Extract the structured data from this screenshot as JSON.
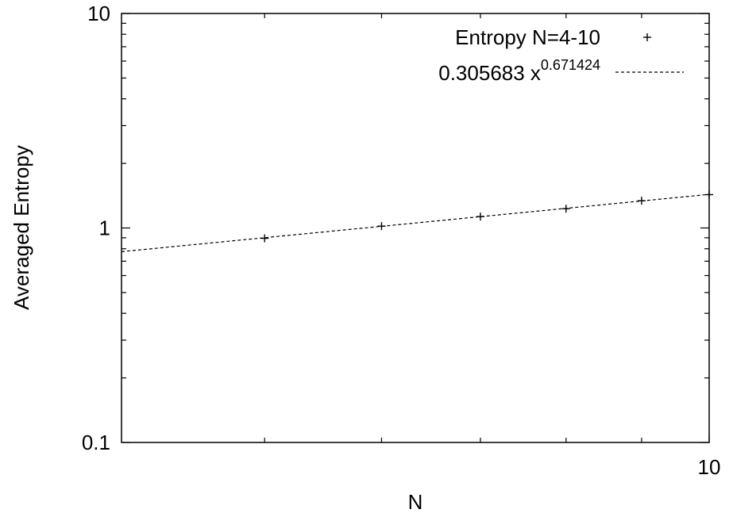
{
  "chart_data": {
    "type": "scatter",
    "title": "",
    "xlabel": "N",
    "ylabel": "Averaged Entropy",
    "xscale": "log",
    "yscale": "log",
    "xlim": [
      4,
      10
    ],
    "ylim": [
      0.1,
      10
    ],
    "x_tick_labels": [
      {
        "value": 10,
        "label": "10"
      }
    ],
    "x_minor_ticks": [
      5,
      6,
      7,
      8,
      9
    ],
    "y_tick_labels": [
      {
        "value": 0.1,
        "label": "0.1"
      },
      {
        "value": 1,
        "label": "1"
      },
      {
        "value": 10,
        "label": "10"
      }
    ],
    "y_minor_ticks": [
      0.2,
      0.3,
      0.4,
      0.5,
      0.6,
      0.7,
      0.8,
      0.9,
      2,
      3,
      4,
      5,
      6,
      7,
      8,
      9
    ],
    "grid": false,
    "legend_position": "top-right",
    "series": [
      {
        "name": "Entropy N=4-10",
        "style": "points",
        "marker": "plus",
        "x": [
          5,
          6,
          7,
          8,
          9,
          10
        ],
        "y": [
          0.895,
          1.02,
          1.13,
          1.23,
          1.34,
          1.43
        ],
        "color": "#000000"
      },
      {
        "name": "0.305683 x",
        "name_superscript": "0.671424",
        "style": "line",
        "dash": "dashed",
        "coefficient": 0.305683,
        "exponent": 0.671424,
        "color": "#000000"
      }
    ]
  }
}
